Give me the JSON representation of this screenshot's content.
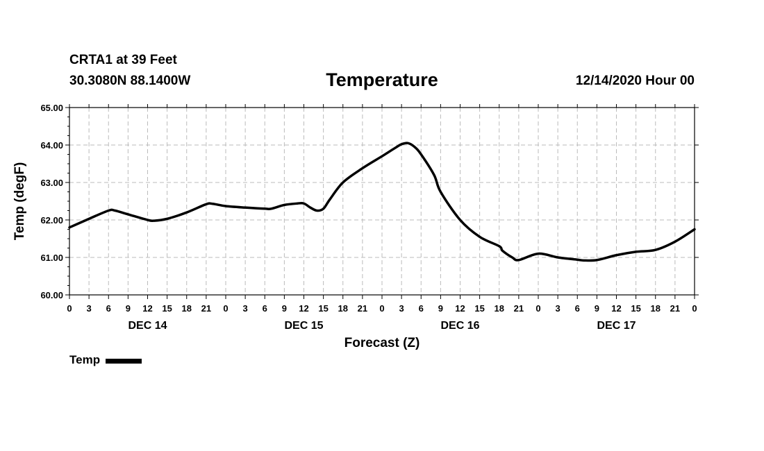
{
  "header": {
    "station": "CRTA1 at 39 Feet",
    "coords": "30.3080N 88.1400W",
    "title": "Temperature",
    "datehour": "12/14/2020 Hour 00"
  },
  "legend": {
    "label": "Temp"
  },
  "colors": {
    "line": "#000000",
    "grid": "#bbbbbb"
  },
  "chart_data": {
    "type": "line",
    "title": "Temperature",
    "xlabel": "Forecast (Z)",
    "ylabel": "Temp (degF)",
    "ylim": [
      60.0,
      65.0
    ],
    "yticks": [
      "60.00",
      "61.00",
      "62.00",
      "63.00",
      "64.00",
      "65.00"
    ],
    "xlim": [
      0,
      96
    ],
    "xtick_step_hours": 3,
    "xtick_labels": [
      "0",
      "3",
      "6",
      "9",
      "12",
      "15",
      "18",
      "21",
      "0",
      "3",
      "6",
      "9",
      "12",
      "15",
      "18",
      "21",
      "0",
      "3",
      "6",
      "9",
      "12",
      "15",
      "18",
      "21",
      "0",
      "3",
      "6",
      "9",
      "12",
      "15",
      "18",
      "21",
      "0"
    ],
    "day_labels": [
      {
        "label": "DEC 14",
        "hour": 12
      },
      {
        "label": "DEC 15",
        "hour": 36
      },
      {
        "label": "DEC 16",
        "hour": 60
      },
      {
        "label": "DEC 17",
        "hour": 84
      }
    ],
    "grid": true,
    "legend_position": "bottom-left",
    "series": [
      {
        "name": "Temp",
        "x": [
          0,
          3,
          6,
          7,
          9,
          12,
          13,
          15,
          18,
          21,
          22,
          24,
          27,
          30,
          31,
          33,
          35,
          36,
          37,
          38,
          39,
          40,
          42,
          45,
          48,
          50,
          51,
          52,
          53,
          54,
          56,
          57,
          60,
          63,
          66,
          66.5,
          68,
          69,
          72,
          75,
          78,
          79,
          81,
          84,
          87,
          90,
          93,
          96
        ],
        "y": [
          61.8,
          62.03,
          62.25,
          62.25,
          62.15,
          62.0,
          61.98,
          62.03,
          62.2,
          62.42,
          62.43,
          62.37,
          62.33,
          62.3,
          62.3,
          62.4,
          62.44,
          62.44,
          62.33,
          62.25,
          62.3,
          62.55,
          63.0,
          63.38,
          63.7,
          63.92,
          64.02,
          64.05,
          63.95,
          63.75,
          63.2,
          62.75,
          62.0,
          61.55,
          61.3,
          61.18,
          61.0,
          60.93,
          61.1,
          61.0,
          60.94,
          60.92,
          60.93,
          61.06,
          61.15,
          61.2,
          61.42,
          61.75
        ]
      }
    ]
  }
}
